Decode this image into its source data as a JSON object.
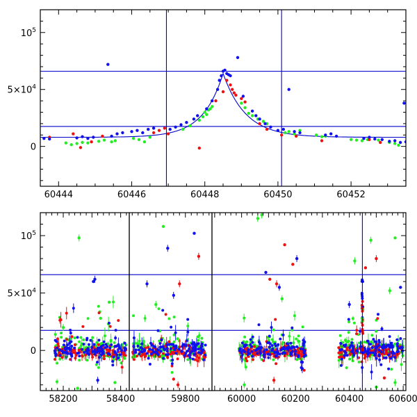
{
  "colors": {
    "g": "#22ee22",
    "r": "#ee1111",
    "i": "#1111ee",
    "guide": "#0000cc"
  },
  "chart_data": [
    {
      "type": "scatter",
      "panel": "zoom",
      "title": "",
      "xlabel": "",
      "ylabel": "",
      "xlim": [
        60443.5,
        60453.5
      ],
      "ylim": [
        -35000,
        120000
      ],
      "xticks": [
        60444,
        60446,
        60448,
        60450,
        60452
      ],
      "xtick_labels": [
        "60444",
        "60446",
        "60448",
        "60450",
        "60452"
      ],
      "yticks": [
        0,
        50000,
        100000
      ],
      "ytick_labels": [
        {
          "base": "0",
          "sup": ""
        },
        {
          "base": "5×10",
          "sup": "4"
        },
        {
          "base": "10",
          "sup": "5"
        }
      ],
      "hlines": [
        66000,
        17500
      ],
      "vlines": [
        60446.95,
        60450.1
      ],
      "model": {
        "t0": 60448.5,
        "peak": 64000,
        "base": 8000,
        "tau_rise": 0.55,
        "tau_fall": 0.62
      },
      "series": [
        {
          "band": "g",
          "x": [
            60444.2,
            60444.35,
            60444.5,
            60444.65,
            60444.8,
            60445.1,
            60445.25,
            60445.45,
            60445.55,
            60446.05,
            60446.2,
            60446.35,
            60446.5,
            60447.4,
            60447.6,
            60447.85,
            60447.95,
            60448.0,
            60448.1,
            60448.2,
            60448.05,
            60448.15,
            60449.0,
            60449.1,
            60449.2,
            60449.3,
            60449.45,
            60449.6,
            60449.7,
            60450.2,
            60450.3,
            60450.45,
            60450.6,
            60451.05,
            60451.2,
            60451.3,
            60452.0,
            60452.15,
            60452.3,
            60452.45,
            60452.75,
            60453.05,
            60453.2,
            60453.3
          ],
          "y": [
            3000,
            1500,
            2500,
            3500,
            3000,
            4500,
            5500,
            4000,
            5000,
            7000,
            6000,
            4000,
            8000,
            15000,
            18000,
            23000,
            26000,
            30000,
            32000,
            35000,
            28000,
            33000,
            38000,
            34000,
            29000,
            27000,
            24000,
            22000,
            20000,
            12000,
            13000,
            11000,
            14000,
            10000,
            8500,
            9000,
            6000,
            5500,
            5000,
            6000,
            5500,
            3500,
            2500,
            1000
          ]
        },
        {
          "band": "r",
          "x": [
            60443.75,
            60444.4,
            60444.6,
            60444.9,
            60445.2,
            60446.6,
            60446.75,
            60446.9,
            60447.0,
            60447.85,
            60448.3,
            60448.5,
            60448.6,
            60448.7,
            60448.75,
            60448.8,
            60448.85,
            60449.0,
            60449.1,
            60449.5,
            60449.7,
            60450.1,
            60450.5,
            60451.2,
            60452.5,
            60452.8
          ],
          "y": [
            8000,
            11000,
            -1000,
            4000,
            9000,
            12000,
            14000,
            16000,
            11000,
            -1500,
            40000,
            48000,
            58000,
            54000,
            50000,
            47000,
            45000,
            42000,
            39000,
            20000,
            15000,
            10000,
            9000,
            5000,
            6000,
            3500
          ]
        },
        {
          "band": "i",
          "x": [
            60443.6,
            60443.75,
            60444.5,
            60444.65,
            60444.8,
            60444.95,
            60445.35,
            60445.45,
            60445.6,
            60445.75,
            60446.0,
            60446.15,
            60446.3,
            60446.45,
            60446.6,
            60447.05,
            60447.2,
            60447.35,
            60447.5,
            60447.7,
            60447.8,
            60448.05,
            60448.2,
            60448.35,
            60448.4,
            60448.45,
            60448.5,
            60448.55,
            60448.6,
            60448.65,
            60448.7,
            60448.9,
            60449.05,
            60449.3,
            60449.4,
            60449.5,
            60449.65,
            60449.8,
            60450.0,
            60450.15,
            60450.3,
            60450.45,
            60450.6,
            60451.3,
            60451.45,
            60451.6,
            60452.35,
            60452.5,
            60452.65,
            60452.85,
            60453.05,
            60453.2,
            60453.35,
            60453.45,
            60453.5
          ],
          "y": [
            7000,
            6500,
            7500,
            8500,
            7000,
            8000,
            72000,
            9000,
            11000,
            12000,
            13000,
            14000,
            12000,
            15000,
            16000,
            15000,
            17000,
            19000,
            21000,
            24000,
            27000,
            33000,
            40000,
            50000,
            58000,
            62000,
            66000,
            67000,
            64000,
            63000,
            62000,
            78000,
            44000,
            31000,
            27000,
            24000,
            20000,
            17000,
            14000,
            15000,
            50000,
            13000,
            12000,
            10000,
            11000,
            9000,
            7000,
            8000,
            6500,
            6000,
            4500,
            5000,
            3500,
            38000,
            4000
          ]
        }
      ]
    },
    {
      "type": "scatter",
      "panel": "full",
      "title": "",
      "xlabel": "",
      "ylabel": "",
      "broken_x": true,
      "segments": [
        {
          "xlim": [
            58120,
            58430
          ],
          "xticks": [
            58200,
            58400
          ],
          "xtick_labels": [
            "58200",
            "58400"
          ],
          "season_start": 58170,
          "season_end": 58420
        },
        {
          "xlim": [
            59610,
            59890
          ],
          "xticks": [
            59800
          ],
          "xtick_labels": [
            "59800"
          ],
          "season_start": 59620,
          "season_end": 59870
        },
        {
          "xlim": [
            59890,
            60610
          ],
          "xticks": [
            60000,
            60200,
            60400,
            60600
          ],
          "xtick_labels": [
            "60000",
            "60200",
            "60400",
            "60600"
          ],
          "seasons": [
            [
              59990,
              60240
            ],
            [
              60360,
              60600
            ]
          ]
        }
      ],
      "ylim": [
        -35000,
        120000
      ],
      "yticks": [
        0,
        50000,
        100000
      ],
      "ytick_labels": [
        {
          "base": "0",
          "sup": ""
        },
        {
          "base": "5×10",
          "sup": "4"
        },
        {
          "base": "10",
          "sup": "5"
        }
      ],
      "hlines": [
        66000,
        17500
      ],
      "vlines": [
        60448.5
      ],
      "peak_x": 60448.5,
      "outliers": [
        {
          "band": "g",
          "x": 58255,
          "y": 98000
        },
        {
          "band": "i",
          "x": 58310,
          "y": 62000
        },
        {
          "band": "i",
          "x": 58305,
          "y": 60000
        },
        {
          "band": "g",
          "x": 58360,
          "y": 42000
        },
        {
          "band": "g",
          "x": 58330,
          "y": 28000
        },
        {
          "band": "g",
          "x": 58200,
          "y": 20000
        },
        {
          "band": "r",
          "x": 58230,
          "y": 12000
        },
        {
          "band": "g",
          "x": 58380,
          "y": -28000
        },
        {
          "band": "g",
          "x": 58250,
          "y": -33000
        },
        {
          "band": "i",
          "x": 58320,
          "y": -26000
        },
        {
          "band": "g",
          "x": 59725,
          "y": 108000
        },
        {
          "band": "i",
          "x": 59830,
          "y": 102000
        },
        {
          "band": "i",
          "x": 59740,
          "y": 89000
        },
        {
          "band": "r",
          "x": 59845,
          "y": 82000
        },
        {
          "band": "i",
          "x": 59670,
          "y": 58000
        },
        {
          "band": "r",
          "x": 59780,
          "y": 58000
        },
        {
          "band": "i",
          "x": 59760,
          "y": 48000
        },
        {
          "band": "g",
          "x": 59700,
          "y": 40000
        },
        {
          "band": "r",
          "x": 59760,
          "y": -25000
        },
        {
          "band": "r",
          "x": 59775,
          "y": -30000
        },
        {
          "band": "g",
          "x": 60060,
          "y": 115000
        },
        {
          "band": "g",
          "x": 60075,
          "y": 118000
        },
        {
          "band": "r",
          "x": 60160,
          "y": 92000
        },
        {
          "band": "i",
          "x": 60205,
          "y": 80000
        },
        {
          "band": "r",
          "x": 60190,
          "y": 75000
        },
        {
          "band": "i",
          "x": 60090,
          "y": 68000
        },
        {
          "band": "r",
          "x": 60105,
          "y": 62000
        },
        {
          "band": "r",
          "x": 60130,
          "y": 58000
        },
        {
          "band": "i",
          "x": 60140,
          "y": 55000
        },
        {
          "band": "g",
          "x": 60150,
          "y": 45000
        },
        {
          "band": "g",
          "x": 60010,
          "y": -30000
        },
        {
          "band": "r",
          "x": 60120,
          "y": -26000
        },
        {
          "band": "g",
          "x": 60480,
          "y": 96000
        },
        {
          "band": "g",
          "x": 60570,
          "y": 98000
        },
        {
          "band": "g",
          "x": 60420,
          "y": 78000
        },
        {
          "band": "r",
          "x": 60500,
          "y": 80000
        },
        {
          "band": "r",
          "x": 60460,
          "y": 72000
        },
        {
          "band": "i",
          "x": 60590,
          "y": 55000
        },
        {
          "band": "g",
          "x": 60550,
          "y": 52000
        },
        {
          "band": "i",
          "x": 60400,
          "y": 40000
        },
        {
          "band": "g",
          "x": 60500,
          "y": -32000
        },
        {
          "band": "g",
          "x": 60570,
          "y": -28000
        },
        {
          "band": "r",
          "x": 60530,
          "y": -24000
        }
      ]
    }
  ]
}
